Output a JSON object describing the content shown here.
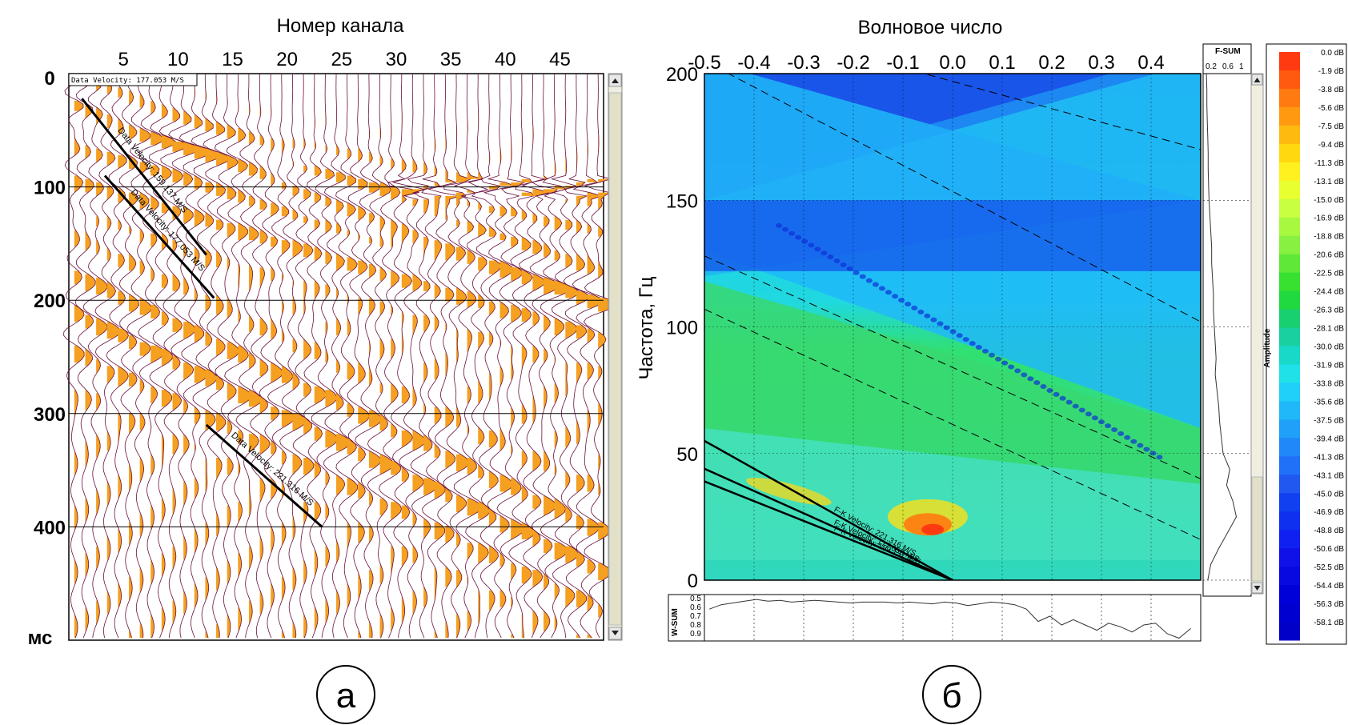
{
  "panel_a": {
    "title": "Номер канала",
    "unit_label": "мс",
    "panel_letter": "а",
    "readout": "Data Velocity: 177.053 M/S"
  },
  "panel_b": {
    "title": "Волновое число",
    "ylabel": "Частота, Гц",
    "panel_letter": "б",
    "fsum_title": "F-SUM",
    "fsum_ticks": [
      "0.2",
      "0.6",
      "1"
    ],
    "wsum_title": "W-SUM",
    "wsum_ticks": [
      "0.5",
      "0.6",
      "0.7",
      "0.8",
      "0.9"
    ],
    "colorbar_title": "Amplitude"
  },
  "chart_data": [
    {
      "type": "wiggle-trace seismogram",
      "title": "Номер канала",
      "x_ticks": [
        5,
        10,
        15,
        20,
        25,
        30,
        35,
        40,
        45
      ],
      "x_range": [
        0,
        49
      ],
      "y_ticks": [
        0,
        100,
        200,
        300,
        400
      ],
      "y_range": [
        0,
        500
      ],
      "y_unit": "мс",
      "annotations": [
        {
          "text": "Data Velocity: 159.137 M/S",
          "x0": 1.2,
          "t0": 22,
          "x1": 12.6,
          "t1": 160
        },
        {
          "text": "Data Velocity: 177.053 M/S",
          "x0": 3.3,
          "t0": 90,
          "x1": 13.3,
          "t1": 198
        },
        {
          "text": "Data Velocity: 221.316 M/S",
          "x0": 12.6,
          "t0": 310,
          "x1": 23.2,
          "t1": 400
        }
      ]
    },
    {
      "type": "heatmap",
      "title": "Волновое число",
      "xlabel": "Волновое число",
      "ylabel": "Частота, Гц",
      "x_ticks": [
        -0.5,
        -0.4,
        -0.3,
        -0.2,
        -0.1,
        0.0,
        0.1,
        0.2,
        0.3,
        0.4
      ],
      "x_range": [
        -0.5,
        0.5
      ],
      "y_ticks": [
        0,
        50,
        100,
        150,
        200
      ],
      "y_range": [
        0,
        200
      ],
      "fk_lines": [
        {
          "text": "F-K Velocity: 221.316 M/S",
          "k_at_f": -0.5,
          "f": 55
        },
        {
          "text": "F-K Velocity: 177.053 M/S",
          "k_at_f": -0.5,
          "f": 44
        },
        {
          "text": "F-K Velocity: 159.137 M/S",
          "k_at_f": -0.5,
          "f": 39
        }
      ],
      "colorbar": {
        "title": "Amplitude",
        "labels": [
          "0.0 dB",
          "-1.9 dB",
          "-3.8 dB",
          "-5.6 dB",
          "-7.5 dB",
          "-9.4 dB",
          "-11.3 dB",
          "-13.1 dB",
          "-15.0 dB",
          "-16.9 dB",
          "-18.8 dB",
          "-20.6 dB",
          "-22.5 dB",
          "-24.4 dB",
          "-26.3 dB",
          "-28.1 dB",
          "-30.0 dB",
          "-31.9 dB",
          "-33.8 dB",
          "-35.6 dB",
          "-37.5 dB",
          "-39.4 dB",
          "-41.3 dB",
          "-43.1 dB",
          "-45.0 dB",
          "-46.9 dB",
          "-48.8 dB",
          "-50.6 dB",
          "-52.5 dB",
          "-54.4 dB",
          "-56.3 dB",
          "-58.1 dB"
        ],
        "colors": [
          "#ff3a10",
          "#ff5a10",
          "#ff7a10",
          "#ff9a10",
          "#ffba10",
          "#ffd810",
          "#fff020",
          "#e8ff30",
          "#c8ff40",
          "#a8f840",
          "#88f040",
          "#60e838",
          "#38e030",
          "#20d840",
          "#18d070",
          "#18d0a0",
          "#18d8c8",
          "#20e0e8",
          "#20d0f8",
          "#20b8f8",
          "#20a0f8",
          "#2088f8",
          "#2070f8",
          "#2058f0",
          "#1040f0",
          "#1030f0",
          "#1020f0",
          "#1010e8",
          "#0808e0",
          "#0000d8",
          "#0000d0",
          "#0000c8"
        ]
      },
      "fsum_profile": [
        0.02,
        0.03,
        0.03,
        0.04,
        0.05,
        0.06,
        0.06,
        0.07,
        0.08,
        0.1,
        0.12,
        0.14,
        0.14,
        0.16,
        0.18,
        0.18,
        0.2,
        0.22,
        0.24,
        0.22,
        0.26,
        0.3,
        0.32,
        0.36,
        0.4,
        0.55,
        0.48,
        0.62,
        0.7,
        0.5,
        0.3,
        0.12,
        0.05
      ],
      "wsum_profile": [
        0.62,
        0.57,
        0.55,
        0.53,
        0.51,
        0.53,
        0.52,
        0.54,
        0.53,
        0.52,
        0.53,
        0.54,
        0.55,
        0.54,
        0.54,
        0.54,
        0.55,
        0.54,
        0.55,
        0.56,
        0.54,
        0.55,
        0.58,
        0.56,
        0.54,
        0.55,
        0.57,
        0.62,
        0.76,
        0.7,
        0.8,
        0.74,
        0.8,
        0.86,
        0.78,
        0.82,
        0.88,
        0.8,
        0.78,
        0.9,
        0.95,
        0.84
      ]
    }
  ]
}
